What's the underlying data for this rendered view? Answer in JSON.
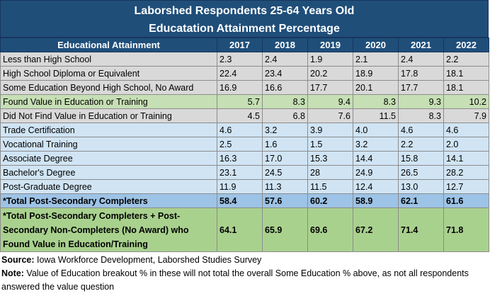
{
  "title": {
    "line1": "Laborshed Respondents 25-64 Years Old",
    "line2": "Educatation Attainment Percentage"
  },
  "table": {
    "header_label": "Educational Attainment",
    "years": [
      "2017",
      "2018",
      "2019",
      "2020",
      "2021",
      "2022"
    ],
    "rows": [
      {
        "label": "Less than High School",
        "values": [
          "2.3",
          "2.4",
          "1.9",
          "2.1",
          "2.4",
          "2.2"
        ]
      },
      {
        "label": "High School Diploma or Equivalent",
        "values": [
          "22.4",
          "23.4",
          "20.2",
          "18.9",
          "17.8",
          "18.1"
        ]
      },
      {
        "label": "Some Education Beyond High School, No Award",
        "values": [
          "16.9",
          "16.6",
          "17.7",
          "20.1",
          "17.7",
          "18.1"
        ]
      },
      {
        "label": "Found Value in Education or Training",
        "values": [
          "5.7",
          "8.3",
          "9.4",
          "8.3",
          "9.3",
          "10.2"
        ]
      },
      {
        "label": "Did Not Find Value in Education or Training",
        "values": [
          "4.5",
          "6.8",
          "7.6",
          "11.5",
          "8.3",
          "7.9"
        ]
      },
      {
        "label": "Trade Certification",
        "values": [
          "4.6",
          "3.2",
          "3.9",
          "4.0",
          "4.6",
          "4.6"
        ]
      },
      {
        "label": "Vocational Training",
        "values": [
          "2.5",
          "1.6",
          "1.5",
          "3.2",
          "2.2",
          "2.0"
        ]
      },
      {
        "label": "Associate Degree",
        "values": [
          "16.3",
          "17.0",
          "15.3",
          "14.4",
          "15.8",
          "14.1"
        ]
      },
      {
        "label": "Bachelor's Degree",
        "values": [
          "23.1",
          "24.5",
          "28",
          "24.9",
          "26.5",
          "28.2"
        ]
      },
      {
        "label": "Post-Graduate Degree",
        "values": [
          "11.9",
          "11.3",
          "11.5",
          "12.4",
          "13.0",
          "12.7"
        ]
      },
      {
        "label": "*Total Post-Secondary Completers",
        "values": [
          "58.4",
          "57.6",
          "60.2",
          "58.9",
          "62.1",
          "61.6"
        ]
      },
      {
        "label": "*Total Post-Secondary Completers + Post-Secondary Non-Completers (No Award) who Found Value in Education/Training",
        "values": [
          "64.1",
          "65.9",
          "69.6",
          "67.2",
          "71.4",
          "71.8"
        ]
      }
    ]
  },
  "notes": {
    "source_label": "Source:",
    "source_text": " Iowa Workforce Development, Laborshed Studies Survey",
    "note_label": "Note:",
    "note_text": " Value of Education breakout % in these will not total the overall Some Education % above, as not all respondents answered the value question"
  }
}
